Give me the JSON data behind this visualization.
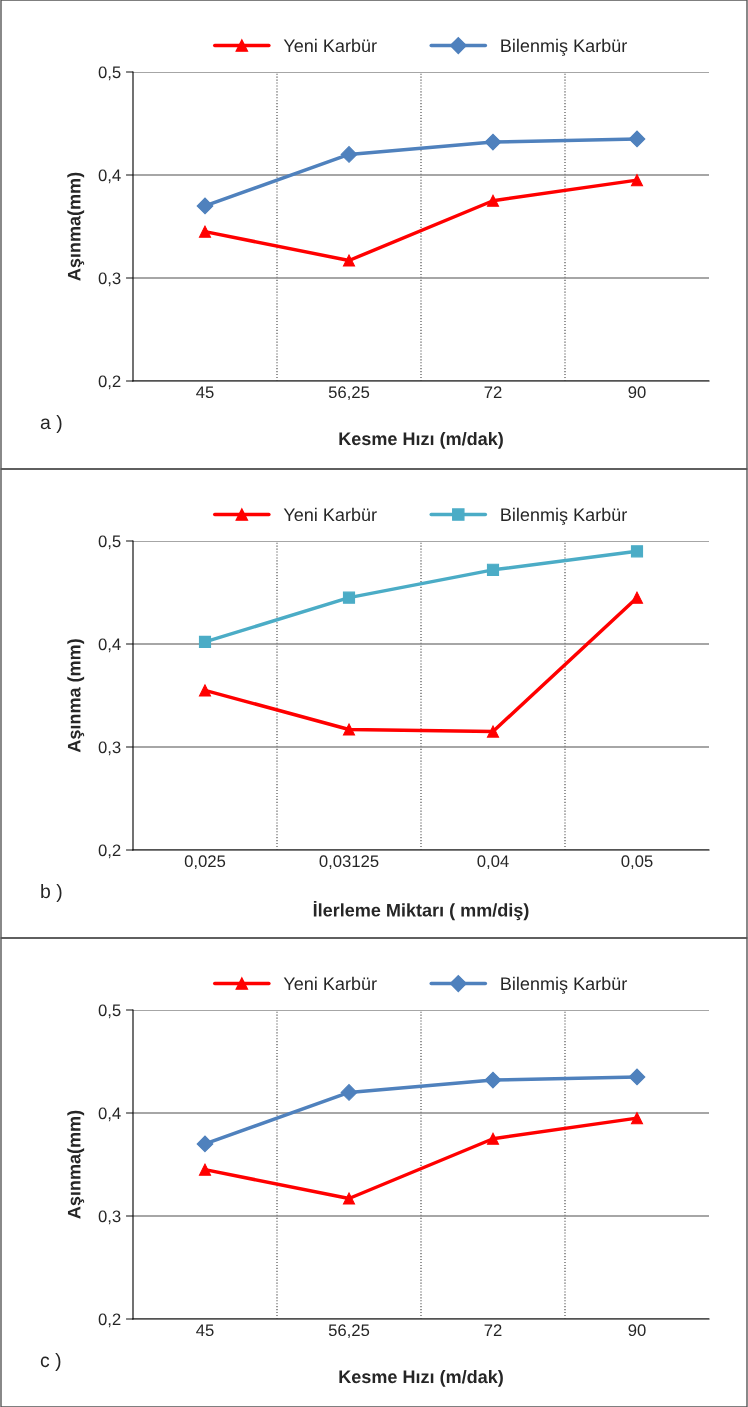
{
  "chart_data": [
    {
      "type": "line",
      "categories": [
        "45",
        "56,25",
        "72",
        "90"
      ],
      "xlabel": "Kesme Hızı (m/dak)",
      "ylabel": "Aşınma(mm)",
      "ylim": [
        0.2,
        0.5
      ],
      "yticks": [
        {
          "value": 0.2,
          "label": "0,2"
        },
        {
          "value": 0.3,
          "label": "0,3"
        },
        {
          "value": 0.4,
          "label": "0,4"
        },
        {
          "value": 0.5,
          "label": "0,5"
        }
      ],
      "grid": true,
      "legend": "top",
      "annotations": [
        "a )"
      ],
      "series": [
        {
          "name": "Yeni Karbür",
          "color": "#ff0000",
          "marker": "triangle",
          "values": [
            0.345,
            0.317,
            0.375,
            0.395
          ]
        },
        {
          "name": "Bilenmiş Karbür",
          "color": "#4f81bd",
          "marker": "diamond",
          "values": [
            0.37,
            0.42,
            0.432,
            0.435
          ]
        }
      ]
    },
    {
      "type": "line",
      "categories": [
        "0,025",
        "0,03125",
        "0,04",
        "0,05"
      ],
      "xlabel": "İlerleme Miktarı ( mm/diş)",
      "ylabel": "Aşınma (mm)",
      "ylim": [
        0.2,
        0.5
      ],
      "yticks": [
        {
          "value": 0.2,
          "label": "0,2"
        },
        {
          "value": 0.3,
          "label": "0,3"
        },
        {
          "value": 0.4,
          "label": "0,4"
        },
        {
          "value": 0.5,
          "label": "0,5"
        }
      ],
      "grid": true,
      "legend": "top",
      "annotations": [
        "b )"
      ],
      "series": [
        {
          "name": "Yeni Karbür",
          "color": "#ff0000",
          "marker": "triangle",
          "values": [
            0.355,
            0.317,
            0.315,
            0.445
          ]
        },
        {
          "name": "Bilenmiş Karbür",
          "color": "#4bacc6",
          "marker": "square",
          "values": [
            0.402,
            0.445,
            0.472,
            0.49
          ]
        }
      ]
    },
    {
      "type": "line",
      "categories": [
        "45",
        "56,25",
        "72",
        "90"
      ],
      "xlabel": "Kesme Hızı (m/dak)",
      "ylabel": "Aşınma(mm)",
      "ylim": [
        0.2,
        0.5
      ],
      "yticks": [
        {
          "value": 0.2,
          "label": "0,2"
        },
        {
          "value": 0.3,
          "label": "0,3"
        },
        {
          "value": 0.4,
          "label": "0,4"
        },
        {
          "value": 0.5,
          "label": "0,5"
        }
      ],
      "grid": true,
      "legend": "top",
      "annotations": [
        "c )"
      ],
      "series": [
        {
          "name": "Yeni Karbür",
          "color": "#ff0000",
          "marker": "triangle",
          "values": [
            0.345,
            0.317,
            0.375,
            0.395
          ]
        },
        {
          "name": "Bilenmiş Karbür",
          "color": "#4f81bd",
          "marker": "diamond",
          "values": [
            0.37,
            0.42,
            0.432,
            0.435
          ]
        }
      ]
    }
  ]
}
